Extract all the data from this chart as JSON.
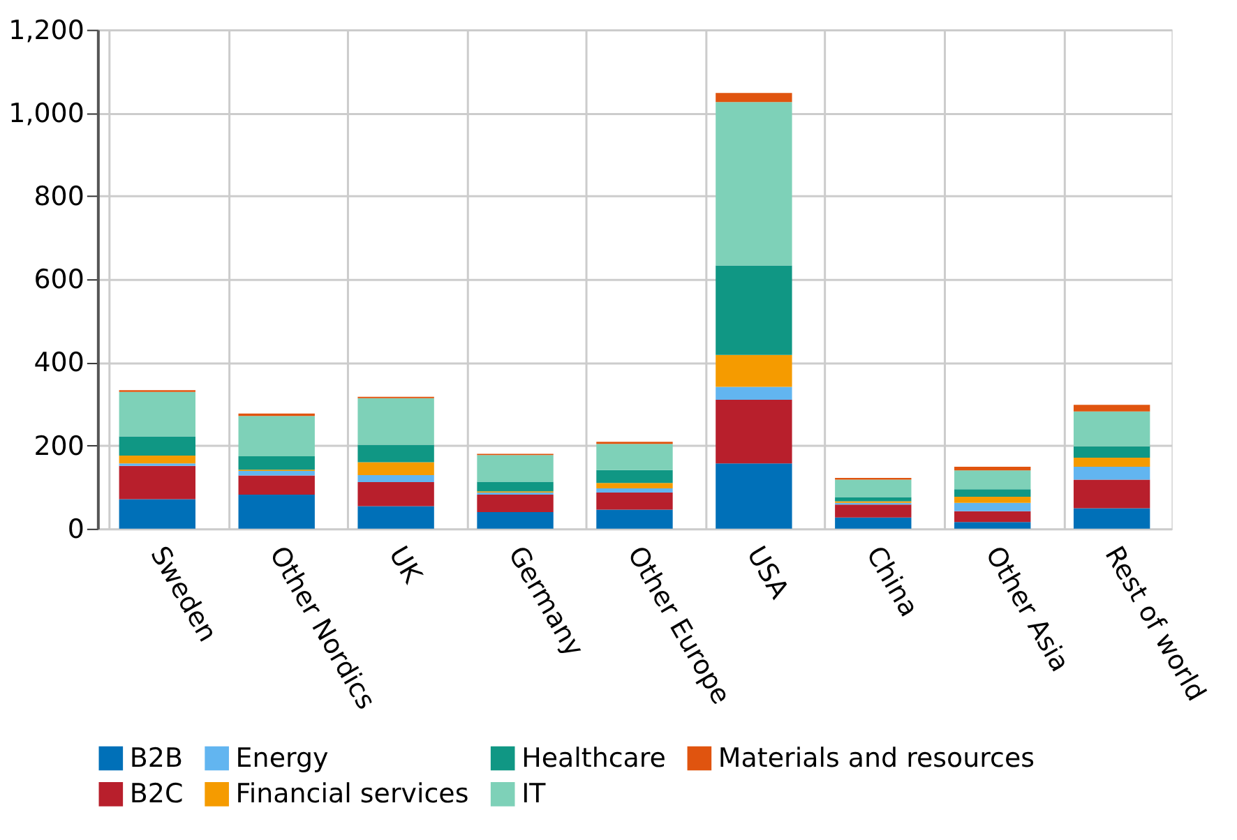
{
  "chart_data": {
    "type": "bar",
    "stacked": true,
    "categories": [
      "Sweden",
      "Other Nordics",
      "UK",
      "Germany",
      "Other Europe",
      "USA",
      "China",
      "Other Asia",
      "Rest of world"
    ],
    "series": [
      {
        "name": "B2B",
        "color": "#0070b8",
        "values": [
          71,
          82,
          54,
          40,
          46,
          157,
          27,
          16,
          49
        ]
      },
      {
        "name": "B2C",
        "color": "#b81f2c",
        "values": [
          80,
          46,
          58,
          42,
          41,
          153,
          31,
          26,
          69
        ]
      },
      {
        "name": "Energy",
        "color": "#62b5f0",
        "values": [
          6,
          11,
          17,
          5,
          10,
          31,
          4,
          20,
          31
        ]
      },
      {
        "name": "Financial services",
        "color": "#f59b00",
        "values": [
          19,
          3,
          31,
          3,
          13,
          77,
          4,
          15,
          22
        ]
      },
      {
        "name": "Healthcare",
        "color": "#109784",
        "values": [
          46,
          32,
          42,
          23,
          31,
          215,
          10,
          18,
          27
        ]
      },
      {
        "name": "IT",
        "color": "#7ed1b8",
        "values": [
          107,
          97,
          112,
          64,
          63,
          393,
          42,
          45,
          84
        ]
      },
      {
        "name": "Materials and resources",
        "color": "#e0540f",
        "values": [
          4,
          6,
          3,
          3,
          5,
          22,
          4,
          9,
          16
        ]
      }
    ],
    "ylim": [
      0,
      1200
    ],
    "yticks": [
      0,
      200,
      400,
      600,
      800,
      {
        "value": 1000,
        "label": "1,000"
      },
      {
        "value": 1200,
        "label": "1,200"
      }
    ],
    "grid": true,
    "legend": "bottom"
  }
}
